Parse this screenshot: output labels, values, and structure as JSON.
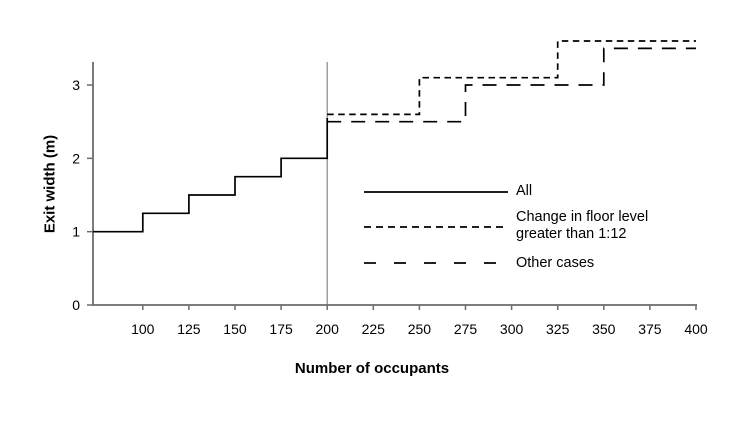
{
  "figure": {
    "background": "#ffffff",
    "colors": {
      "series_line": "#000000",
      "axis": "#6b6b6b",
      "reference_line": "#7d7d7d",
      "text": "#000000"
    }
  },
  "chart_data": {
    "type": "line",
    "subtype": "step",
    "title": "",
    "xlabel": "Number of occupants",
    "ylabel": "Exit width (m)",
    "xlim": [
      73,
      400
    ],
    "ylim": [
      0,
      3.314
    ],
    "grid": false,
    "legend_position": "inside-right-middle",
    "x_ticks": [
      100,
      125,
      150,
      175,
      200,
      225,
      250,
      275,
      300,
      325,
      350,
      375,
      400
    ],
    "y_ticks": [
      0,
      1,
      2,
      3
    ],
    "reference_line_x": 200,
    "series": [
      {
        "id": "all",
        "name": "All",
        "style": "solid",
        "points": [
          [
            73,
            1.0
          ],
          [
            100,
            1.0
          ],
          [
            100,
            1.25
          ],
          [
            125,
            1.25
          ],
          [
            125,
            1.5
          ],
          [
            150,
            1.5
          ],
          [
            150,
            1.75
          ],
          [
            175,
            1.75
          ],
          [
            175,
            2.0
          ],
          [
            200,
            2.0
          ],
          [
            200,
            2.55
          ]
        ]
      },
      {
        "id": "change-in-floor-level",
        "name": "Change in floor level greater than 1:12",
        "style": "short-dash",
        "points": [
          [
            200,
            2.6
          ],
          [
            250,
            2.6
          ],
          [
            250,
            3.1
          ],
          [
            325,
            3.1
          ],
          [
            325,
            3.6
          ],
          [
            400,
            3.6
          ]
        ]
      },
      {
        "id": "other-cases",
        "name": "Other cases",
        "style": "long-dash",
        "points": [
          [
            200,
            2.5
          ],
          [
            275,
            2.5
          ],
          [
            275,
            3.0
          ],
          [
            350,
            3.0
          ],
          [
            350,
            3.5
          ],
          [
            400,
            3.5
          ]
        ]
      }
    ]
  }
}
